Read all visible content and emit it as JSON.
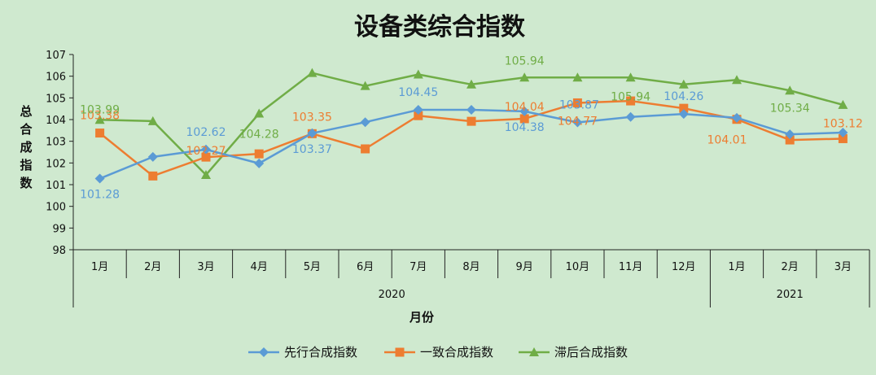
{
  "chart_data": {
    "type": "line",
    "title": "设备类综合指数",
    "ylabel": "总合成指数",
    "xlabel": "月份",
    "ylim": [
      98,
      107
    ],
    "yticks": [
      98,
      99,
      100,
      101,
      102,
      103,
      104,
      105,
      106,
      107
    ],
    "categories": [
      "1月",
      "2月",
      "3月",
      "4月",
      "5月",
      "6月",
      "7月",
      "8月",
      "9月",
      "10月",
      "11月",
      "12月",
      "1月",
      "2月",
      "3月"
    ],
    "year_groups": [
      {
        "label": "2020",
        "span": 12
      },
      {
        "label": "2021",
        "span": 3
      }
    ],
    "series": [
      {
        "name": "先行合成指数",
        "color": "#5b9bd5",
        "marker": "diamond",
        "values": [
          101.28,
          102.28,
          102.62,
          101.98,
          103.37,
          103.88,
          104.45,
          104.45,
          104.38,
          103.87,
          104.12,
          104.26,
          104.08,
          103.32,
          103.4
        ],
        "data_labels": [
          {
            "index": 0,
            "text": "101.28"
          },
          {
            "index": 2,
            "text": "102.62"
          },
          {
            "index": 4,
            "text": "103.37"
          },
          {
            "index": 6,
            "text": "104.45"
          },
          {
            "index": 8,
            "text": "104.38"
          },
          {
            "index": 9,
            "text": "103.87"
          },
          {
            "index": 11,
            "text": "104.26"
          }
        ]
      },
      {
        "name": "一致合成指数",
        "color": "#ed7d31",
        "marker": "square",
        "values": [
          103.38,
          101.4,
          102.27,
          102.42,
          103.35,
          102.65,
          104.18,
          103.92,
          104.04,
          104.77,
          104.86,
          104.52,
          104.01,
          103.06,
          103.12
        ],
        "data_labels": [
          {
            "index": 0,
            "text": "103.38"
          },
          {
            "index": 2,
            "text": "102.27"
          },
          {
            "index": 4,
            "text": "103.35"
          },
          {
            "index": 8,
            "text": "104.04"
          },
          {
            "index": 9,
            "text": "104.77"
          },
          {
            "index": 12,
            "text": "104.01"
          },
          {
            "index": 14,
            "text": "103.12"
          }
        ]
      },
      {
        "name": "滞后合成指数",
        "color": "#70ad47",
        "marker": "triangle",
        "values": [
          103.99,
          103.93,
          101.45,
          104.28,
          106.15,
          105.55,
          106.08,
          105.62,
          105.94,
          105.94,
          105.94,
          105.62,
          105.83,
          105.34,
          104.68
        ],
        "data_labels": [
          {
            "index": 0,
            "text": "103.99"
          },
          {
            "index": 3,
            "text": "104.28"
          },
          {
            "index": 8,
            "text": "105.94"
          },
          {
            "index": 10,
            "text": "105.94"
          },
          {
            "index": 13,
            "text": "105.34"
          }
        ]
      }
    ],
    "legend_position": "bottom",
    "grid": false,
    "background": "#cfe9cf"
  }
}
